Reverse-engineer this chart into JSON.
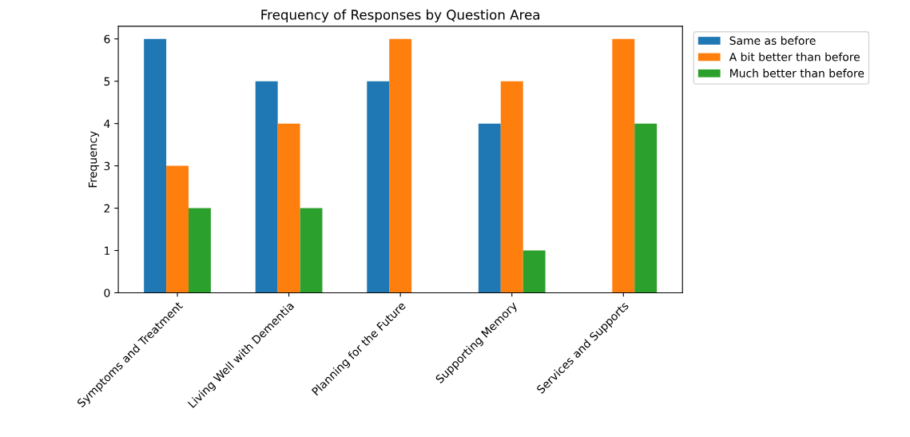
{
  "chart_data": {
    "type": "bar",
    "title": "Frequency of Responses by Question Area",
    "ylabel": "Frequency",
    "categories": [
      "Symptoms and Treatment",
      "Living Well with Dementia",
      "Planning for the Future",
      "Supporting Memory",
      "Services and Supports"
    ],
    "series": [
      {
        "name": "Same as before",
        "color": "#1f77b4",
        "values": [
          6,
          5,
          5,
          4,
          0
        ]
      },
      {
        "name": "A bit better than before",
        "color": "#ff7f0e",
        "values": [
          3,
          4,
          6,
          5,
          6
        ]
      },
      {
        "name": "Much better than before",
        "color": "#2ca02c",
        "values": [
          2,
          2,
          0,
          1,
          4
        ]
      }
    ],
    "ylim": [
      0,
      6.3
    ],
    "yticks": [
      0,
      1,
      2,
      3,
      4,
      5,
      6
    ],
    "grid": false,
    "legend": "top right"
  }
}
